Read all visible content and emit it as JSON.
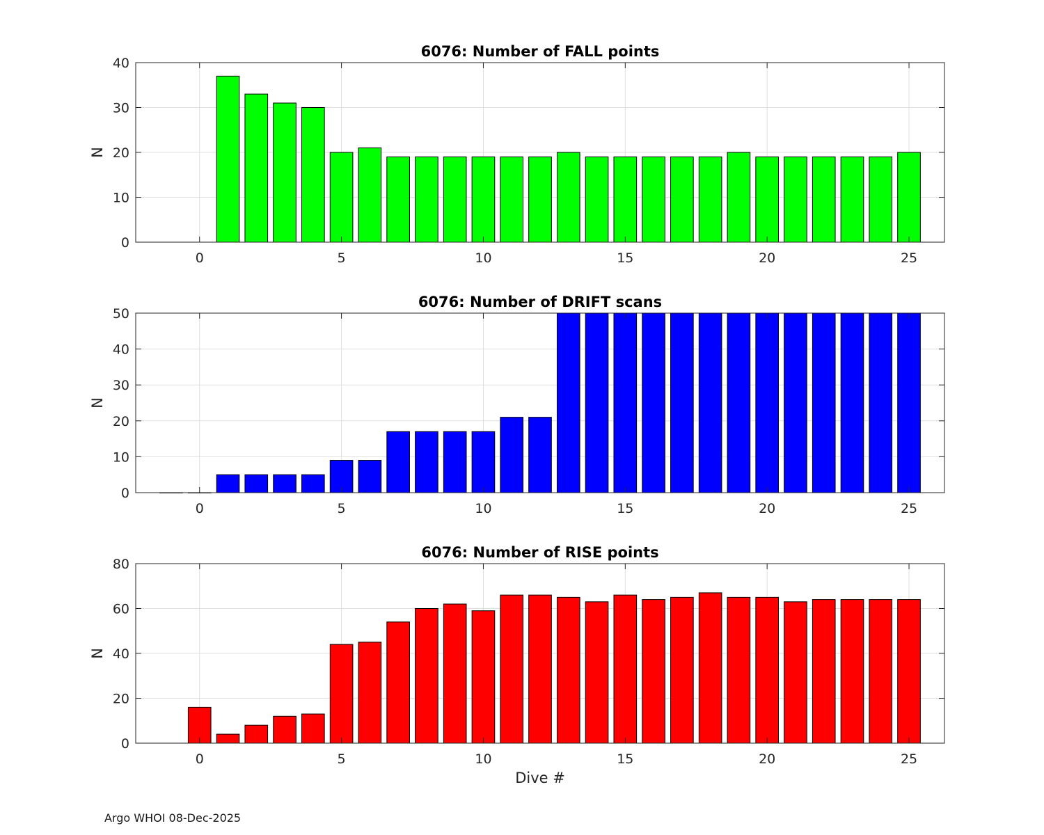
{
  "footer": "Argo WHOI 08-Dec-2025",
  "chart_data": [
    {
      "type": "bar",
      "title": "6076: Number of FALL points",
      "xlabel": "",
      "ylabel": "N",
      "color": "#00ff00",
      "xlim": [
        -2.25,
        26.25
      ],
      "ylim": [
        0,
        40
      ],
      "xticks": [
        0,
        5,
        10,
        15,
        20,
        25
      ],
      "yticks": [
        0,
        10,
        20,
        30,
        40
      ],
      "x": [
        1,
        2,
        3,
        4,
        5,
        6,
        7,
        8,
        9,
        10,
        11,
        12,
        13,
        14,
        15,
        16,
        17,
        18,
        19,
        20,
        21,
        22,
        23,
        24,
        25
      ],
      "values": [
        37,
        33,
        31,
        30,
        20,
        21,
        19,
        19,
        19,
        19,
        19,
        19,
        20,
        19,
        19,
        19,
        19,
        19,
        20,
        19,
        19,
        19,
        19,
        19,
        20
      ]
    },
    {
      "type": "bar",
      "title": "6076: Number of DRIFT scans",
      "xlabel": "",
      "ylabel": "N",
      "color": "#0000ff",
      "xlim": [
        -2.25,
        26.25
      ],
      "ylim": [
        0,
        50
      ],
      "xticks": [
        0,
        5,
        10,
        15,
        20,
        25
      ],
      "yticks": [
        0,
        10,
        20,
        30,
        40,
        50
      ],
      "x": [
        -1,
        0,
        1,
        2,
        3,
        4,
        5,
        6,
        7,
        8,
        9,
        10,
        11,
        12,
        13,
        14,
        15,
        16,
        17,
        18,
        19,
        20,
        21,
        22,
        23,
        24,
        25
      ],
      "values": [
        0,
        0,
        5,
        5,
        5,
        5,
        9,
        9,
        17,
        17,
        17,
        17,
        21,
        21,
        50,
        50,
        50,
        50,
        50,
        50,
        50,
        50,
        50,
        50,
        50,
        50,
        50
      ]
    },
    {
      "type": "bar",
      "title": "6076: Number of RISE points",
      "xlabel": "Dive #",
      "ylabel": "N",
      "color": "#ff0000",
      "xlim": [
        -2.25,
        26.25
      ],
      "ylim": [
        0,
        80
      ],
      "xticks": [
        0,
        5,
        10,
        15,
        20,
        25
      ],
      "yticks": [
        0,
        20,
        40,
        60,
        80
      ],
      "x": [
        0,
        1,
        2,
        3,
        4,
        5,
        6,
        7,
        8,
        9,
        10,
        11,
        12,
        13,
        14,
        15,
        16,
        17,
        18,
        19,
        20,
        21,
        22,
        23,
        24,
        25
      ],
      "values": [
        16,
        4,
        8,
        12,
        13,
        44,
        45,
        54,
        60,
        62,
        59,
        66,
        66,
        65,
        63,
        66,
        64,
        65,
        67,
        65,
        65,
        63,
        64,
        64,
        64,
        64
      ]
    }
  ]
}
